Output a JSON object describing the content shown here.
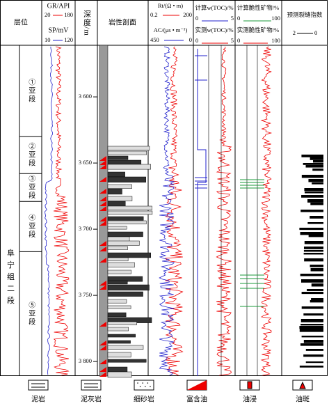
{
  "header": {
    "layer": "层位",
    "gr": "GR/API",
    "gr_min": "20",
    "gr_max": "180",
    "sp": "SP/mV",
    "sp_min": "10",
    "sp_max": "120",
    "depth": "深度/m",
    "lithology": "岩性剖面",
    "rt": "Rt/(Ω • m)",
    "rt_min": "0.2",
    "rt_max": "200",
    "ac": "AC/(μs • m⁻¹)",
    "ac_min": "450",
    "ac_max": "0",
    "toc_calc": "计算w(TOC)/%",
    "toc_calc_min": "0",
    "toc_calc_max": "5",
    "toc_meas": "实测w(TOC)/%",
    "toc_meas_min": "0",
    "toc_meas_max": "5",
    "brit_calc": "计算脆性矿物/%",
    "brit_calc_min": "0",
    "brit_calc_max": "100",
    "brit_meas": "实测脆性矿物/%",
    "brit_meas_min": "0",
    "brit_meas_max": "100",
    "fracture": "预测裂缝指数",
    "frac_min": "2",
    "frac_max": "0"
  },
  "formation": "阜宁组二段",
  "subzones": [
    {
      "label": "①亚段",
      "top": 3561,
      "bottom": 3630
    },
    {
      "label": "②亚段",
      "top": 3630,
      "bottom": 3658
    },
    {
      "label": "③亚段",
      "top": 3658,
      "bottom": 3679
    },
    {
      "label": "④亚段",
      "top": 3679,
      "bottom": 3717
    },
    {
      "label": "⑤亚段",
      "top": 3717,
      "bottom": 3811
    }
  ],
  "depth_ticks": [
    {
      "value": 3600,
      "label": "3 600"
    },
    {
      "value": 3650,
      "label": "3 650"
    },
    {
      "value": 3700,
      "label": "3 700"
    },
    {
      "value": 3750,
      "label": "3 750"
    },
    {
      "value": 3800,
      "label": "3 800"
    }
  ],
  "depth_range": [
    3561,
    3811
  ],
  "legend": [
    "泥岩",
    "泥灰岩",
    "细砂岩",
    "富含油",
    "油浸",
    "油斑"
  ]
}
